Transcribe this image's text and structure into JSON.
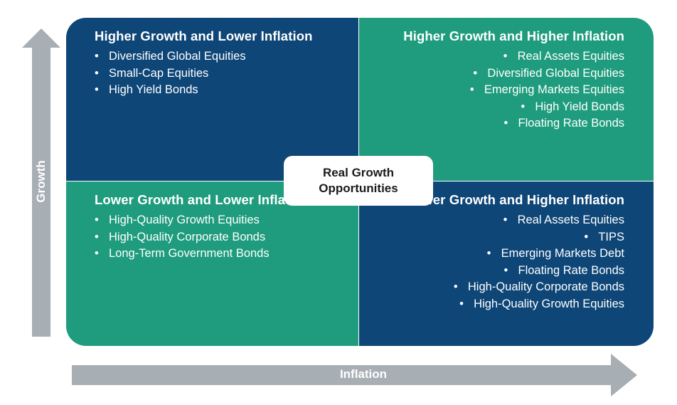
{
  "colors": {
    "dark_blue": "#0e4677",
    "green": "#1f9c7d",
    "arrow_gray": "#a7aeb4",
    "white": "#ffffff"
  },
  "axes": {
    "vertical_label": "Growth",
    "horizontal_label": "Inflation"
  },
  "center_label": "Real Growth Opportunities",
  "quadrants": {
    "top_left": {
      "title": "Higher Growth and Lower Inflation",
      "items": [
        "Diversified Global Equities",
        "Small-Cap Equities",
        "High Yield Bonds"
      ]
    },
    "top_right": {
      "title": "Higher Growth and Higher Inflation",
      "items": [
        "Real Assets Equities",
        "Diversified Global Equities",
        "Emerging Markets Equities",
        "High Yield Bonds",
        "Floating Rate Bonds"
      ]
    },
    "bottom_left": {
      "title": "Lower Growth and Lower Inflation",
      "items": [
        "High-Quality Growth Equities",
        "High-Quality Corporate Bonds",
        "Long-Term Government Bonds"
      ]
    },
    "bottom_right": {
      "title": "Lower Growth and Higher Inflation",
      "items": [
        "Real Assets Equities",
        "TIPS",
        "Emerging Markets Debt",
        "Floating Rate Bonds",
        "High-Quality Corporate Bonds",
        "High-Quality Growth Equities"
      ]
    }
  }
}
